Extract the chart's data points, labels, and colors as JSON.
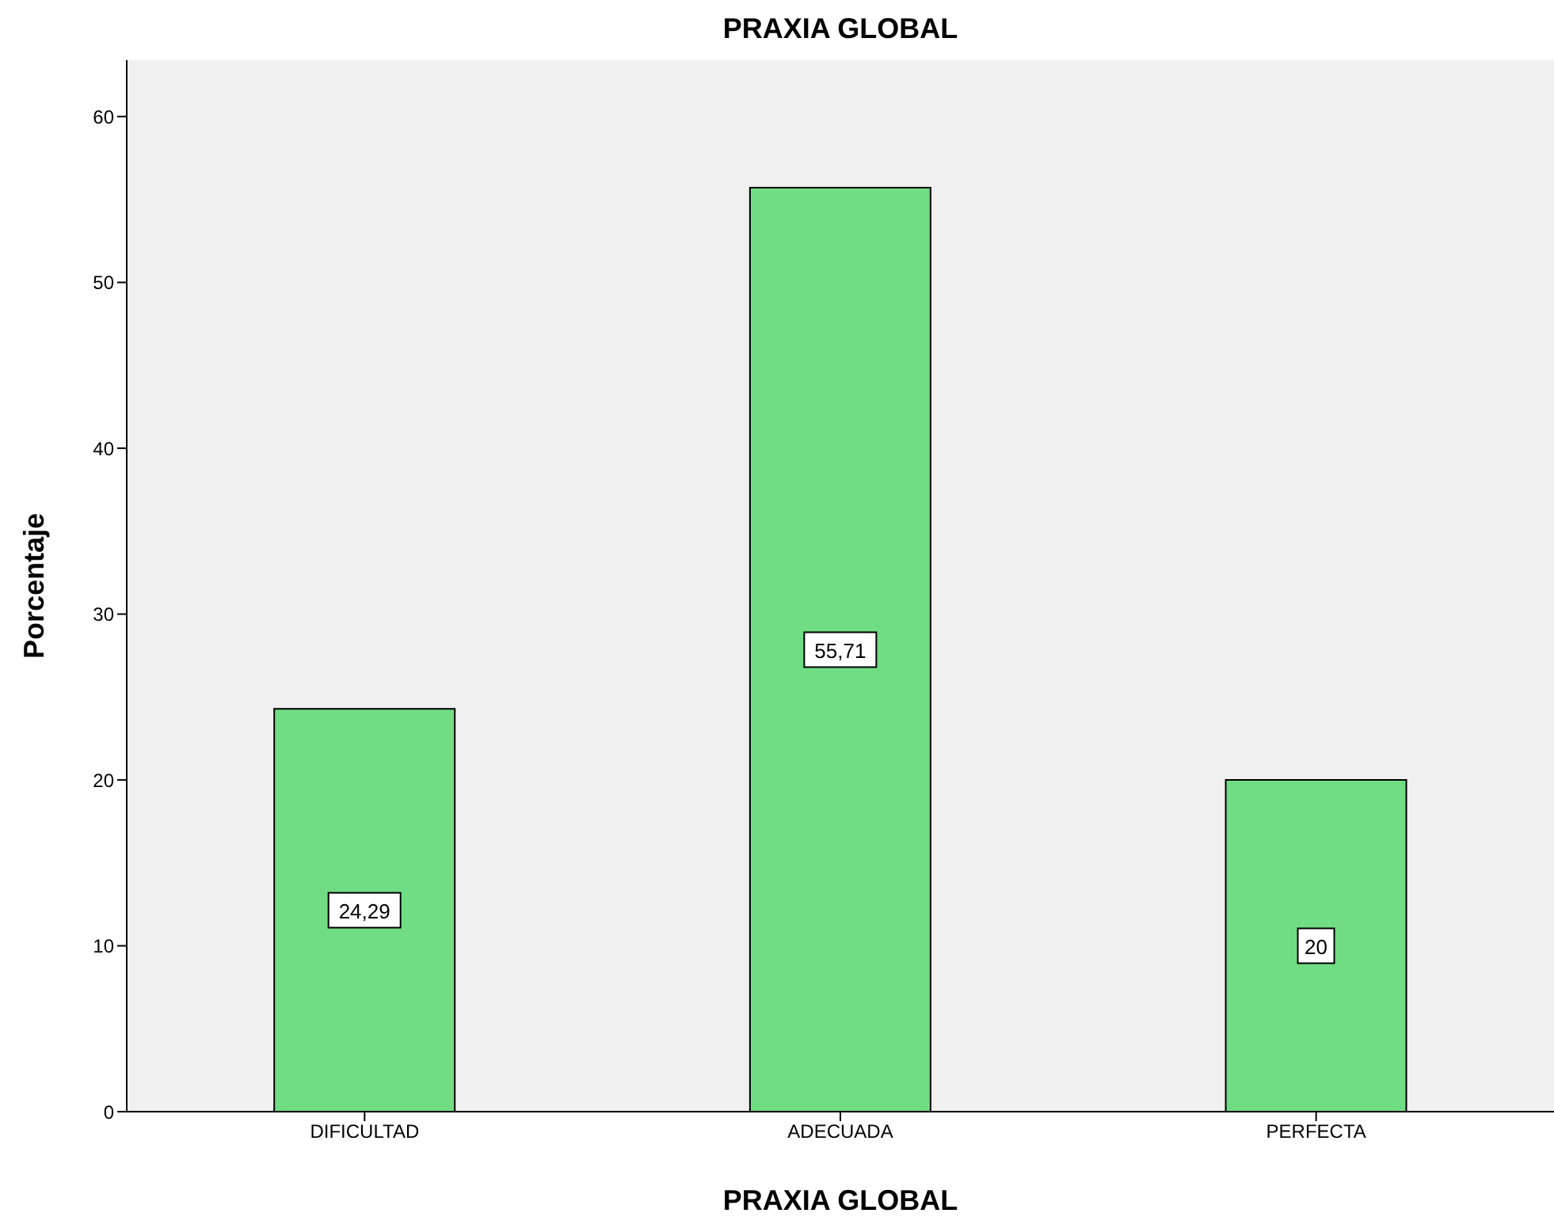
{
  "chart_data": {
    "type": "bar",
    "title": "PRAXIA GLOBAL",
    "xlabel": "PRAXIA GLOBAL",
    "ylabel": "Porcentaje",
    "categories": [
      "DIFICULTAD",
      "ADECUADA",
      "PERFECTA"
    ],
    "values": [
      24.29,
      55.71,
      20
    ],
    "value_labels": [
      "24,29",
      "55,71",
      "20"
    ],
    "color": "#70dc84",
    "ylim": [
      0,
      63.4
    ],
    "yticks": [
      0,
      10,
      20,
      30,
      40,
      50,
      60
    ]
  }
}
